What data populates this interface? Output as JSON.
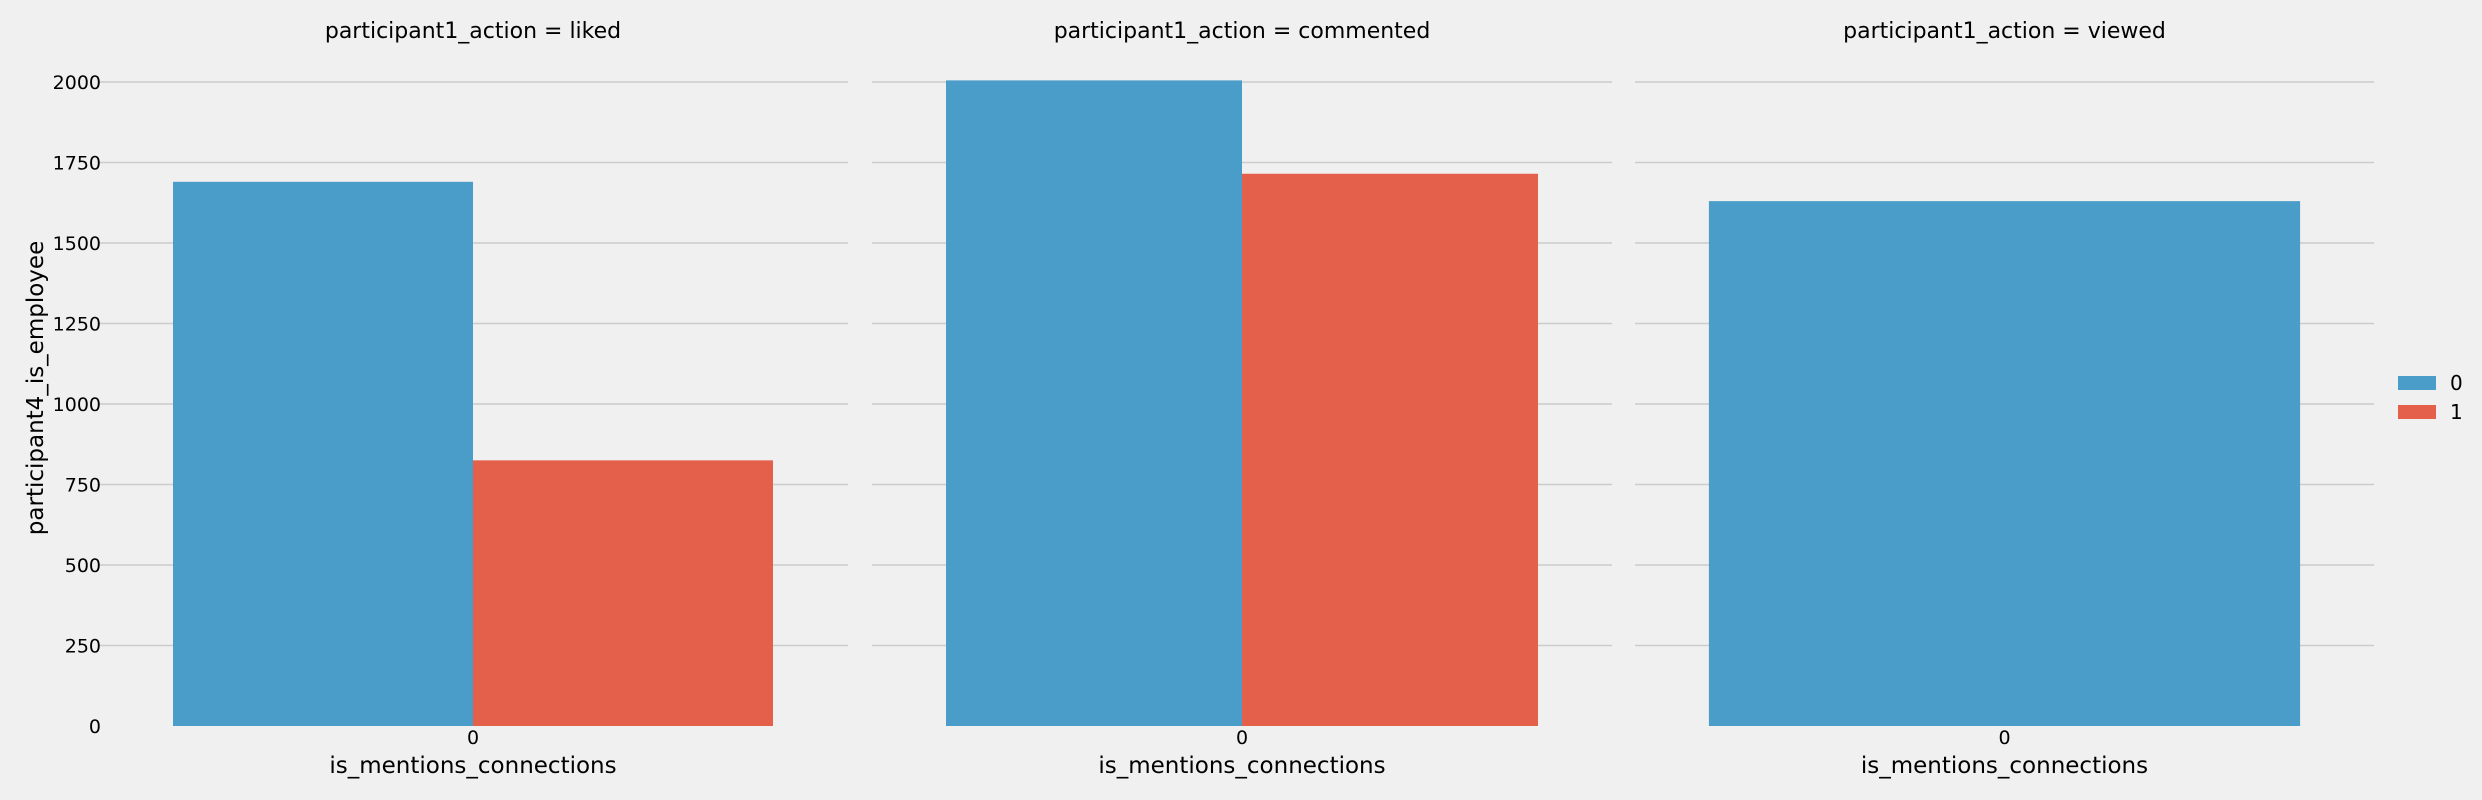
{
  "chart_data": {
    "type": "bar",
    "ylabel": "participant4_is_employee",
    "ylim": [
      0,
      2000
    ],
    "yticks": [
      0,
      250,
      500,
      750,
      1000,
      1250,
      1500,
      1750,
      2000
    ],
    "grid": true,
    "legend": {
      "placement": "right",
      "entries": [
        {
          "label": "0",
          "color": "#4a9cc9"
        },
        {
          "label": "1",
          "color": "#e5604a"
        }
      ]
    },
    "facets": [
      {
        "title": "participant1_action = liked",
        "xlabel": "is_mentions_connections",
        "categories": [
          "0"
        ],
        "series": [
          {
            "hue": "0",
            "values": [
              1690
            ]
          },
          {
            "hue": "1",
            "values": [
              825
            ]
          }
        ]
      },
      {
        "title": "participant1_action = commented",
        "xlabel": "is_mentions_connections",
        "categories": [
          "0"
        ],
        "series": [
          {
            "hue": "0",
            "values": [
              2005
            ]
          },
          {
            "hue": "1",
            "values": [
              1715
            ]
          }
        ]
      },
      {
        "title": "participant1_action = viewed",
        "xlabel": "is_mentions_connections",
        "categories": [
          "0"
        ],
        "series": [
          {
            "hue": "0",
            "values": [
              1630
            ]
          }
        ]
      }
    ]
  }
}
